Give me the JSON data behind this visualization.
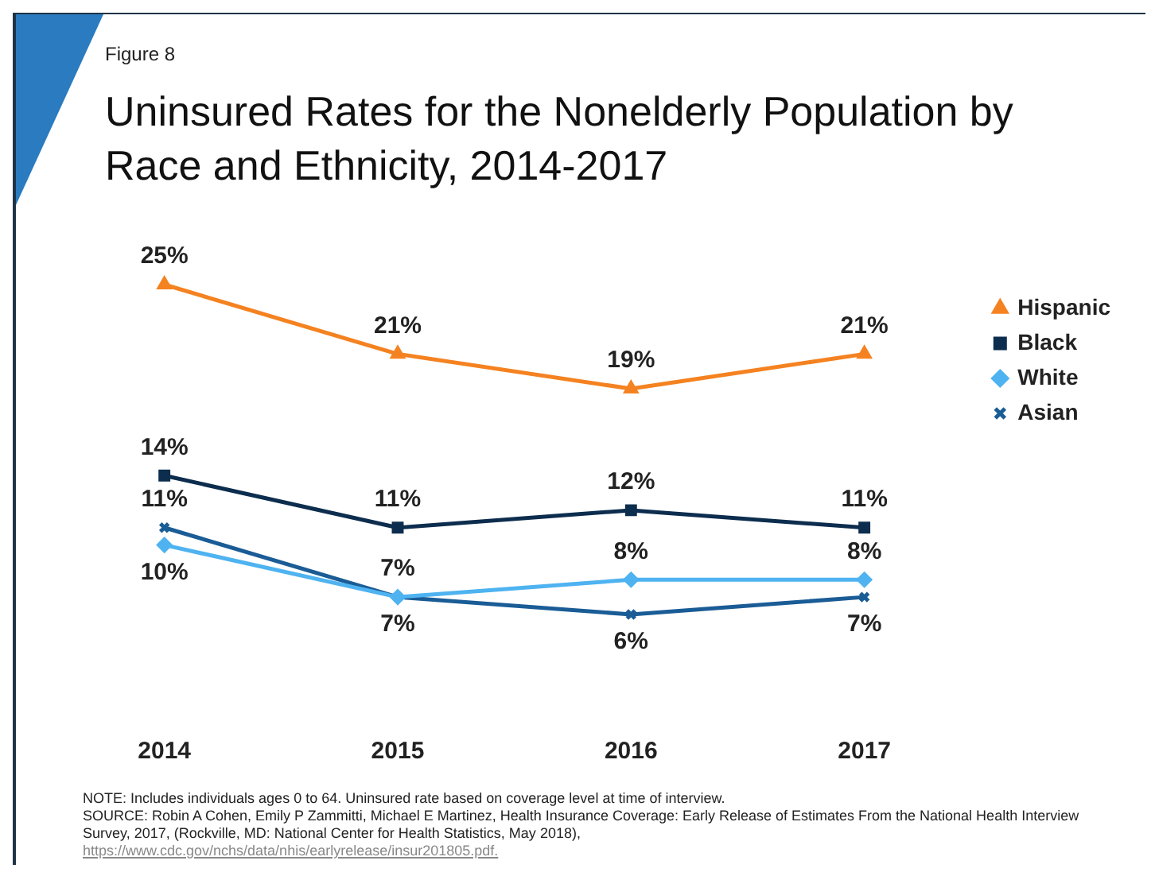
{
  "chart_data": {
    "type": "line",
    "title": "Uninsured Rates for the Nonelderly Population by Race and Ethnicity, 2014-2017",
    "annotations": [
      "Figure 8",
      "NOTE: Includes individuals ages 0 to 64. Uninsured rate based on coverage level at time of interview.",
      "SOURCE: Robin A Cohen, Emily P Zammitti, Michael E Martinez, Health Insurance Coverage: Early Release of Estimates From the National Health Interview Survey, 2017, (Rockville, MD: National Center for Health Statistics, May 2018),",
      "https://www.cdc.gov/nchs/data/nhis/earlyrelease/insur201805.pdf."
    ],
    "categories": [
      "2014",
      "2015",
      "2016",
      "2017"
    ],
    "legend": "right",
    "grid": false,
    "tick_labels": "x",
    "series": [
      {
        "name": "Hispanic",
        "color": "#f58220",
        "marker": "triangle",
        "values": [
          25,
          21,
          19,
          21
        ],
        "value_labels": [
          "25%",
          "21%",
          "19%",
          "21%"
        ]
      },
      {
        "name": "Black",
        "color": "#0d2d4e",
        "marker": "square",
        "values": [
          14,
          11,
          12,
          11
        ],
        "value_labels": [
          "14%",
          "11%",
          "12%",
          "11%"
        ]
      },
      {
        "name": "White",
        "color": "#4eb3f0",
        "marker": "diamond",
        "values": [
          10,
          7,
          8,
          8
        ],
        "value_labels": [
          "10%",
          "7%",
          "8%",
          "8%"
        ]
      },
      {
        "name": "Asian",
        "color": "#1a5c96",
        "marker": "cross",
        "values": [
          11,
          7,
          6,
          7
        ],
        "value_labels": [
          "11%",
          "7%",
          "6%",
          "7%"
        ]
      }
    ]
  }
}
